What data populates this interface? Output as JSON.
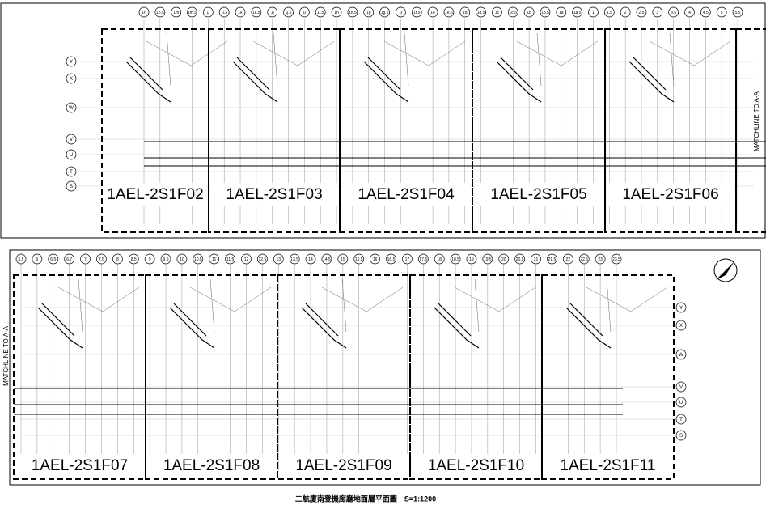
{
  "panels": [
    {
      "columns": [
        "1n",
        "1n.5",
        "1m",
        "1m.5",
        "1l",
        "1l.5",
        "1k",
        "1k.5",
        "1j",
        "1j.5",
        "1i",
        "1i.5",
        "1h",
        "1h.5",
        "1g",
        "1g.5",
        "1f",
        "1f.5",
        "1e",
        "1e.5",
        "1d",
        "1d.5",
        "1c",
        "1c.5",
        "1b",
        "1b.5",
        "1a",
        "1a.5",
        "1",
        "1.5",
        "2",
        "2.5",
        "3",
        "3.5",
        "4",
        "4.5",
        "5",
        "5.5"
      ],
      "rows": [
        "Y",
        "X",
        "W",
        "V",
        "U",
        "T",
        "S"
      ],
      "sheets": [
        "1AEL-2S1F02",
        "1AEL-2S1F03",
        "1AEL-2S1F04",
        "1AEL-2S1F05",
        "1AEL-2S1F06"
      ],
      "matchline": "MATCHLINE TO A-A"
    },
    {
      "columns": [
        "5.5",
        "6",
        "6.5",
        "6.7",
        "7",
        "7.5",
        "8",
        "8.5",
        "9",
        "9.5",
        "10",
        "10.5",
        "11",
        "11.5",
        "12",
        "12.5",
        "13",
        "13.5",
        "14",
        "14.5",
        "15",
        "15.5",
        "16",
        "16.5",
        "17",
        "17.5",
        "18",
        "18.5",
        "19",
        "19.5",
        "20",
        "20.5",
        "21",
        "21.5",
        "22",
        "22.5",
        "23",
        "23.5"
      ],
      "rows": [
        "Y",
        "X",
        "W",
        "V",
        "U",
        "T",
        "S"
      ],
      "sheets": [
        "1AEL-2S1F07",
        "1AEL-2S1F08",
        "1AEL-2S1F09",
        "1AEL-2S1F10",
        "1AEL-2S1F11"
      ],
      "matchline": "MATCHLINE TO A-A"
    }
  ],
  "title": "二航廈南登機廊廳地面層平面圖　S=1:1200"
}
